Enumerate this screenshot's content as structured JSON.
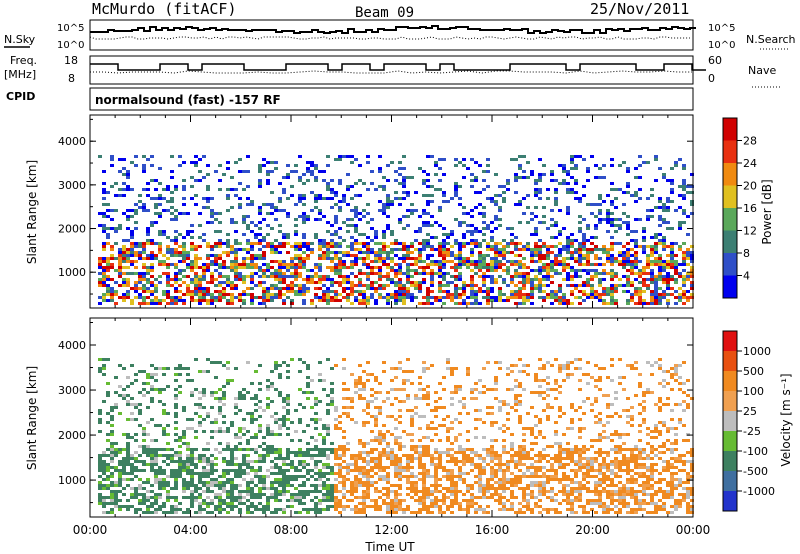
{
  "header": {
    "station": "McMurdo (fitACF)",
    "beam": "Beam 09",
    "date": "25/Nov/2011",
    "cpid_label": "CPID",
    "program": "normalsound (fast) -157 RF"
  },
  "top_panels": {
    "nsky_label": "N.Sky",
    "nsky_ticks": [
      "10^5",
      "10^0"
    ],
    "nsearch_label": "N.Search",
    "nsearch_ticks": [
      "10^5",
      "10^0"
    ],
    "freq_label": "Freq.",
    "freq_unit": "[MHz]",
    "freq_ticks": [
      "18",
      "8"
    ],
    "nave_label": "Nave",
    "nave_ticks": [
      "60",
      "0"
    ]
  },
  "chart_data": [
    {
      "type": "heatmap",
      "name": "power",
      "ylabel": "Slant Range [km]",
      "yticks": [
        "4000",
        "3000",
        "2000",
        "1000"
      ],
      "ylim": [
        180,
        4600
      ],
      "xlim": [
        0,
        24
      ],
      "colorbar": {
        "label": "Power [dB]",
        "ticks": [
          "28",
          "24",
          "20",
          "16",
          "12",
          "8",
          "4"
        ],
        "colors": [
          "#0000ee",
          "#2f4fc8",
          "#3c7f73",
          "#5aa85a",
          "#e0c020",
          "#f08a10",
          "#e83010",
          "#d00000"
        ]
      }
    },
    {
      "type": "heatmap",
      "name": "velocity",
      "ylabel": "Slant Range [km]",
      "yticks": [
        "4000",
        "3000",
        "2000",
        "1000"
      ],
      "ylim": [
        180,
        4600
      ],
      "xlim": [
        0,
        24
      ],
      "xlabel": "Time UT",
      "xticks": [
        "00:00",
        "04:00",
        "08:00",
        "12:00",
        "16:00",
        "20:00",
        "00:00"
      ],
      "colorbar": {
        "label": "Velocity [m s⁻¹]",
        "ticks": [
          "1000",
          "500",
          "100",
          "25",
          "-25",
          "-100",
          "-500",
          "-1000"
        ],
        "colors": [
          "#2233cc",
          "#3f6fa0",
          "#3d8060",
          "#66bb33",
          "#bdbdbd",
          "#f0a050",
          "#f08a20",
          "#e85010",
          "#e01010"
        ]
      }
    }
  ]
}
